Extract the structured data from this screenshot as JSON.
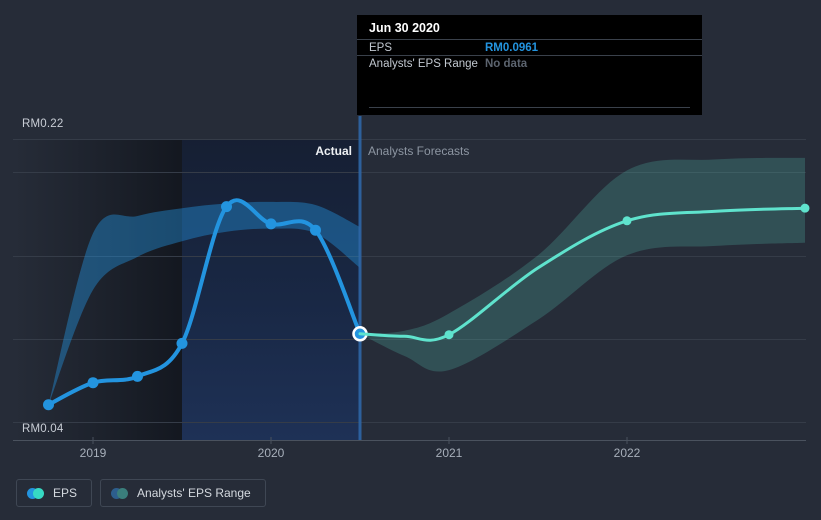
{
  "page": {
    "background": "#262c38"
  },
  "tooltip": {
    "title": "Jun 30 2020",
    "rows": [
      {
        "label": "EPS",
        "value": "RM0.0961",
        "value_color": "#2394df"
      },
      {
        "label": "Analysts' EPS Range",
        "value": "No data",
        "value_color": "#5c646f"
      }
    ]
  },
  "chart": {
    "y_axis_top_label": "RM0.22",
    "y_axis_bottom_label": "RM0.04",
    "x_ticks": [
      "2019",
      "2020",
      "2021",
      "2022"
    ],
    "section_labels": {
      "actual": "Actual",
      "forecast": "Analysts Forecasts"
    }
  },
  "legend": [
    {
      "label": "EPS",
      "dot_left": "#2394df",
      "dot_right": "#36d9c3"
    },
    {
      "label": "Analysts' EPS Range",
      "dot_left": "#2d5e8d",
      "dot_right": "#3a7e7c"
    }
  ],
  "chart_data": {
    "type": "line",
    "currency": "RM",
    "ylim": [
      0.04,
      0.22
    ],
    "x_tick_years": [
      2019,
      2020,
      2021,
      2022
    ],
    "divider_x": 2020.5,
    "highlight_span": [
      2019.5,
      2020.5
    ],
    "colors": {
      "eps_line": "#2394df",
      "forecast_line": "#5fe3cd",
      "actual_band": "rgba(35,148,223,0.42)",
      "forecast_band": "rgba(95,227,205,0.20)",
      "divider": "#2e66a6",
      "highlight_point_ring": "#ffffff"
    },
    "series": [
      {
        "name": "EPS",
        "kind": "line",
        "color": "#2394df",
        "width": 4,
        "dates": [
          "2018-09-30",
          "2018-12-31",
          "2019-03-31",
          "2019-06-30",
          "2019-09-30",
          "2019-12-31",
          "2020-03-31",
          "2020-06-30"
        ],
        "t": [
          2018.75,
          2019.0,
          2019.25,
          2019.5,
          2019.75,
          2020.0,
          2020.25,
          2020.5
        ],
        "values": [
          0.051,
          0.065,
          0.069,
          0.09,
          0.177,
          0.166,
          0.162,
          0.0961
        ],
        "marker_indices": [
          0,
          1,
          2,
          3,
          4,
          5,
          6
        ],
        "marker_r": 5.5,
        "highlight_index": 7
      },
      {
        "name": "Analysts Forecast EPS",
        "kind": "line",
        "color": "#5fe3cd",
        "width": 3,
        "dates": [
          "2020-06-30",
          "2020-09-30",
          "2020-12-31",
          "2021-06-30",
          "2021-12-31",
          "2022-06-30",
          "2022-12-31"
        ],
        "t": [
          2020.5,
          2020.75,
          2021.0,
          2021.5,
          2022.0,
          2022.5,
          2023.0
        ],
        "values": [
          0.0961,
          0.0945,
          0.0955,
          0.138,
          0.168,
          0.174,
          0.176
        ],
        "marker_indices": [
          2,
          4,
          6
        ],
        "marker_r": 4.5
      },
      {
        "name": "Analysts' EPS Range (actual)",
        "kind": "band",
        "color": "rgba(35,148,223,0.42)",
        "t": [
          2018.75,
          2019.0,
          2019.25,
          2019.5,
          2019.75,
          2020.0,
          2020.25,
          2020.5
        ],
        "upper": [
          0.051,
          0.16,
          0.171,
          0.176,
          0.179,
          0.18,
          0.178,
          0.164
        ],
        "lower": [
          0.051,
          0.124,
          0.145,
          0.155,
          0.161,
          0.163,
          0.16,
          0.138
        ]
      },
      {
        "name": "Analysts' EPS Range (forecast)",
        "kind": "band",
        "color": "rgba(95,227,205,0.20)",
        "t": [
          2020.5,
          2020.75,
          2021.0,
          2021.5,
          2022.0,
          2022.5,
          2023.0
        ],
        "upper": [
          0.0961,
          0.098,
          0.109,
          0.146,
          0.2,
          0.207,
          0.208
        ],
        "lower": [
          0.0961,
          0.082,
          0.073,
          0.105,
          0.146,
          0.152,
          0.154
        ]
      }
    ]
  }
}
